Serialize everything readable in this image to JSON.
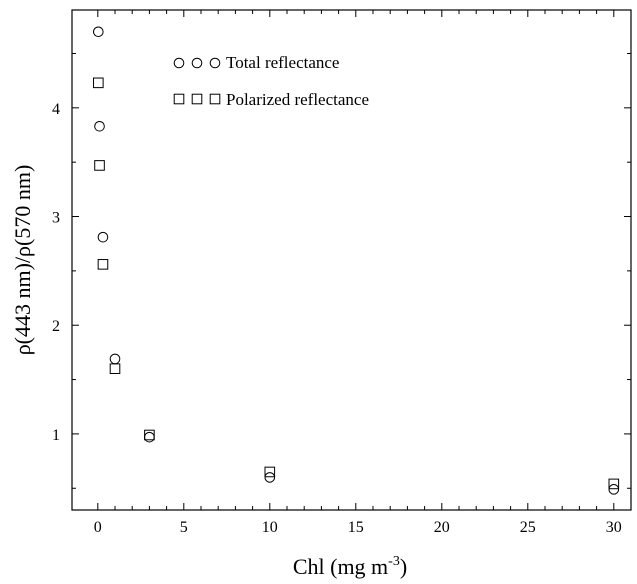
{
  "chart_data": {
    "type": "scatter",
    "xlabel": "Chl (mg m",
    "xlabel_sup": "-3",
    "xlabel_tail": ")",
    "ylabel": "ρ(443 nm)/ρ(570 nm)",
    "xlim": [
      -1.5,
      31
    ],
    "ylim": [
      0.3,
      4.9
    ],
    "x_ticks": [
      0,
      5,
      10,
      15,
      20,
      25,
      30
    ],
    "y_ticks": [
      1,
      2,
      3,
      4
    ],
    "x_minor_step": 1,
    "y_minor_step": 0.5,
    "grid": false,
    "legend_position": "top-center",
    "series": [
      {
        "name": "Total reflectance",
        "marker": "circle",
        "x": [
          0.03,
          0.1,
          0.3,
          1,
          3,
          10,
          30
        ],
        "y": [
          4.7,
          3.83,
          2.81,
          1.69,
          0.97,
          0.6,
          0.49
        ]
      },
      {
        "name": "Polarized reflectance",
        "marker": "square",
        "x": [
          0.03,
          0.1,
          0.3,
          1,
          3,
          10,
          30
        ],
        "y": [
          4.23,
          3.47,
          2.56,
          1.6,
          0.99,
          0.65,
          0.54
        ]
      }
    ]
  }
}
